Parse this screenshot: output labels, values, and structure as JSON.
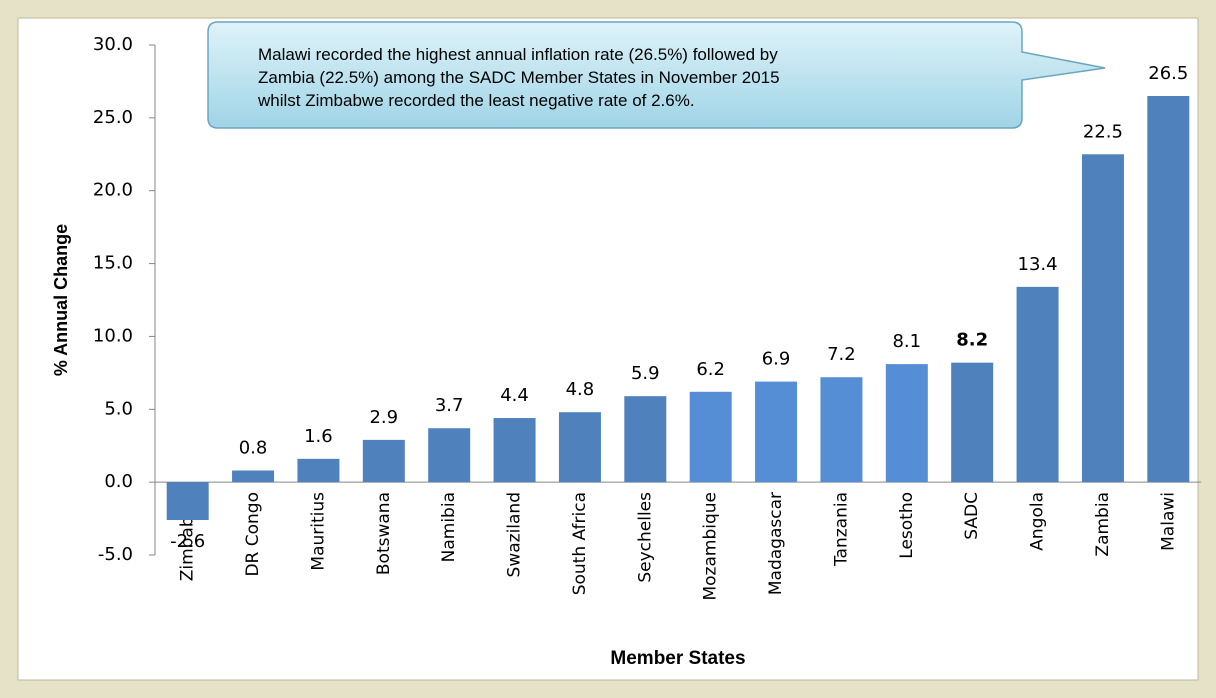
{
  "chart_data": {
    "type": "bar",
    "annotation": [
      "Malawi recorded the highest annual inflation rate (26.5%) followed by",
      "Zambia (22.5%) among the SADC Member States in November 2015",
      "whilst Zimbabwe recorded the least negative rate of 2.6%."
    ],
    "x_label": "Member States",
    "y_label": "% Annual Change",
    "categories": [
      "Zimbabwe",
      "DR Congo",
      "Mauritius",
      "Botswana",
      "Namibia",
      "Swaziland",
      "South Africa",
      "Seychelles",
      "Mozambique",
      "Madagascar",
      "Tanzania",
      "Lesotho",
      "SADC",
      "Angola",
      "Zambia",
      "Malawi"
    ],
    "values": [
      -2.6,
      0.8,
      1.6,
      2.9,
      3.7,
      4.4,
      4.8,
      5.9,
      6.2,
      6.9,
      7.2,
      8.1,
      8.2,
      13.4,
      22.5,
      26.5
    ],
    "colors": [
      "#4f81bd",
      "#4f81bd",
      "#4f81bd",
      "#4f81bd",
      "#4f81bd",
      "#4f81bd",
      "#4f81bd",
      "#4f81bd",
      "#558ed5",
      "#558ed5",
      "#558ed5",
      "#558ed5",
      "#4f81bd",
      "#4f81bd",
      "#4f81bd",
      "#4f81bd"
    ],
    "highlight_category": "SADC",
    "ylim": [
      -5,
      30
    ],
    "yticks": [
      {
        "value": -5,
        "label": "-5.0"
      },
      {
        "value": 0,
        "label": "0.0"
      },
      {
        "value": 5,
        "label": "5.0"
      },
      {
        "value": 10,
        "label": "10.0"
      },
      {
        "value": 15,
        "label": "15.0"
      },
      {
        "value": 20,
        "label": "20.0"
      },
      {
        "value": 25,
        "label": "25.0"
      },
      {
        "value": 30,
        "label": "30.0"
      }
    ],
    "grid": false
  }
}
